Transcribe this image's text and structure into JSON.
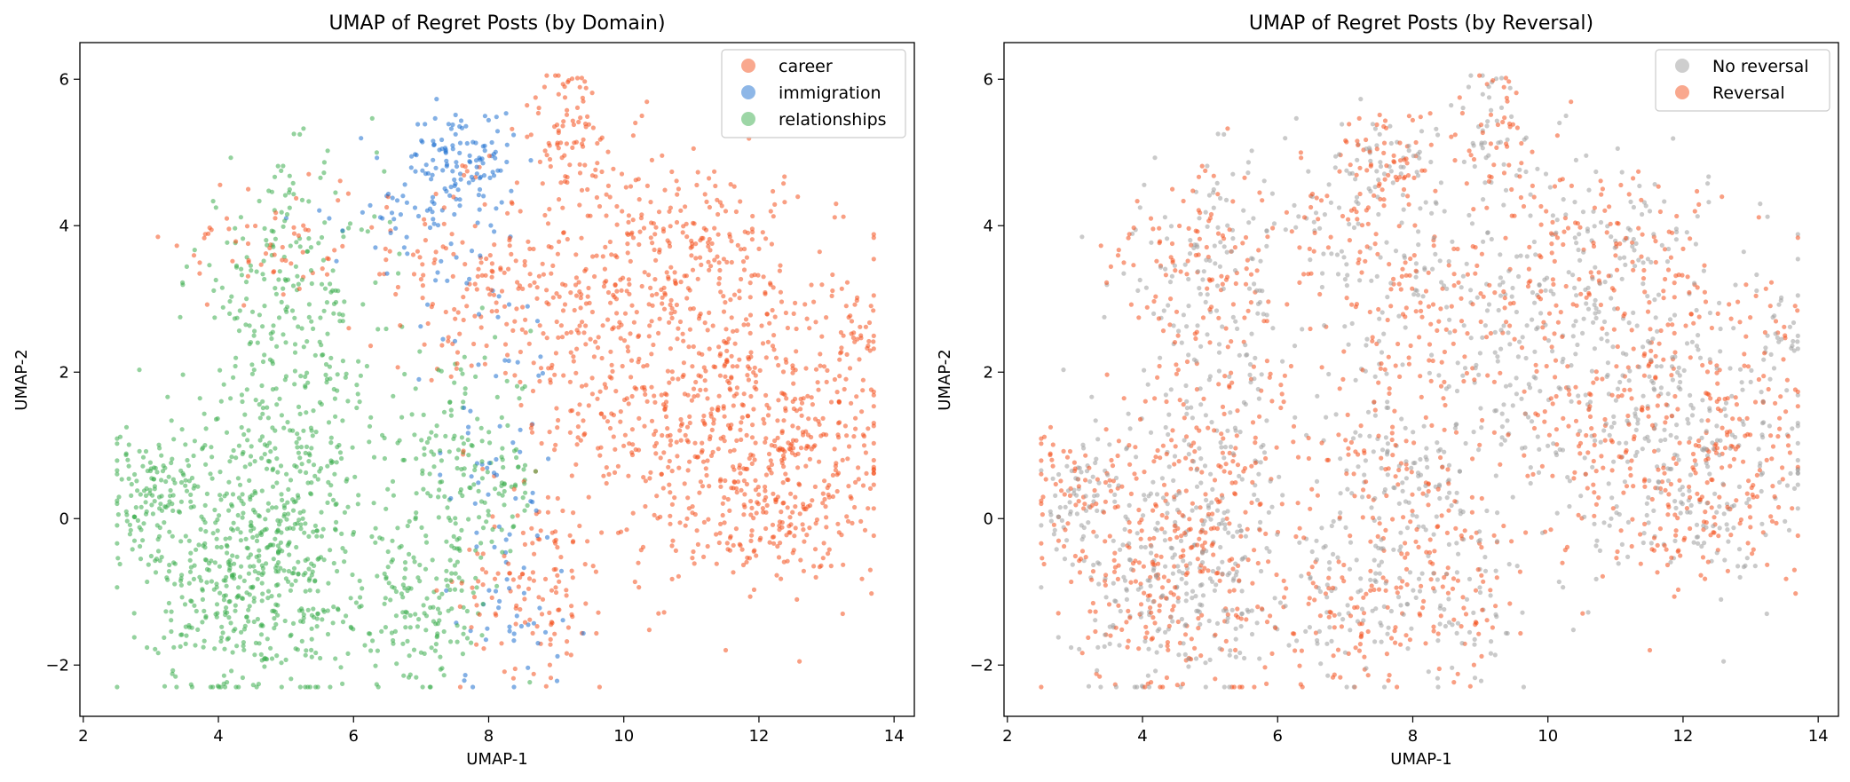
{
  "chart_data": [
    {
      "type": "scatter",
      "title": "UMAP of Regret Posts (by Domain)",
      "xlabel": "UMAP-1",
      "ylabel": "UMAP-2",
      "xlim": [
        1.95,
        14.3
      ],
      "ylim": [
        -2.7,
        6.5
      ],
      "xticks": [
        2,
        4,
        6,
        8,
        10,
        12,
        14
      ],
      "yticks": [
        -2,
        0,
        2,
        4,
        6
      ],
      "xtick_labels": [
        "2",
        "4",
        "6",
        "8",
        "10",
        "12",
        "14"
      ],
      "ytick_labels": [
        "−2",
        "0",
        "2",
        "4",
        "6"
      ],
      "grid": false,
      "legend_position": "top-right",
      "series": [
        {
          "name": "career",
          "color": "#f4511e",
          "clusters": [
            {
              "cx": 11.5,
              "cy": 1.5,
              "sx": 1.2,
              "sy": 1.2,
              "n": 520
            },
            {
              "cx": 9.5,
              "cy": 3.0,
              "sx": 0.9,
              "sy": 1.1,
              "n": 300
            },
            {
              "cx": 12.5,
              "cy": 0.8,
              "sx": 0.8,
              "sy": 0.8,
              "n": 200
            },
            {
              "cx": 9.2,
              "cy": 5.4,
              "sx": 0.35,
              "sy": 0.45,
              "n": 70
            },
            {
              "cx": 8.7,
              "cy": -0.9,
              "sx": 0.55,
              "sy": 0.6,
              "n": 120
            },
            {
              "cx": 11.2,
              "cy": 3.9,
              "sx": 0.6,
              "sy": 0.5,
              "n": 110
            },
            {
              "cx": 7.5,
              "cy": 3.3,
              "sx": 0.8,
              "sy": 0.6,
              "n": 100
            },
            {
              "cx": 4.8,
              "cy": 3.8,
              "sx": 0.7,
              "sy": 0.5,
              "n": 60
            },
            {
              "cx": 12.0,
              "cy": -0.2,
              "sx": 0.6,
              "sy": 0.4,
              "n": 70
            },
            {
              "cx": 13.5,
              "cy": 2.3,
              "sx": 0.2,
              "sy": 0.3,
              "n": 25
            }
          ]
        },
        {
          "name": "immigration",
          "color": "#1e6fd0",
          "clusters": [
            {
              "cx": 7.6,
              "cy": 4.9,
              "sx": 0.4,
              "sy": 0.35,
              "n": 110
            },
            {
              "cx": 6.8,
              "cy": 4.2,
              "sx": 0.6,
              "sy": 0.4,
              "n": 50
            },
            {
              "cx": 8.0,
              "cy": 1.5,
              "sx": 0.5,
              "sy": 1.2,
              "n": 60
            },
            {
              "cx": 8.3,
              "cy": -1.2,
              "sx": 0.5,
              "sy": 0.6,
              "n": 40
            }
          ]
        },
        {
          "name": "relationships",
          "color": "#3cad4e",
          "clusters": [
            {
              "cx": 4.5,
              "cy": -1.0,
              "sx": 0.75,
              "sy": 0.75,
              "n": 380
            },
            {
              "cx": 5.0,
              "cy": 0.6,
              "sx": 1.0,
              "sy": 0.9,
              "n": 340
            },
            {
              "cx": 3.0,
              "cy": 0.3,
              "sx": 0.45,
              "sy": 0.45,
              "n": 120
            },
            {
              "cx": 5.0,
              "cy": 3.2,
              "sx": 0.7,
              "sy": 0.8,
              "n": 200
            },
            {
              "cx": 7.7,
              "cy": 0.5,
              "sx": 0.55,
              "sy": 0.8,
              "n": 170
            },
            {
              "cx": 6.9,
              "cy": -1.3,
              "sx": 0.6,
              "sy": 0.5,
              "n": 140
            }
          ]
        }
      ]
    },
    {
      "type": "scatter",
      "title": "UMAP of Regret Posts (by Reversal)",
      "xlabel": "UMAP-1",
      "ylabel": "UMAP-2",
      "xlim": [
        1.95,
        14.3
      ],
      "ylim": [
        -2.7,
        6.5
      ],
      "xticks": [
        2,
        4,
        6,
        8,
        10,
        12,
        14
      ],
      "yticks": [
        -2,
        0,
        2,
        4,
        6
      ],
      "xtick_labels": [
        "2",
        "4",
        "6",
        "8",
        "10",
        "12",
        "14"
      ],
      "ytick_labels": [
        "−2",
        "0",
        "2",
        "4",
        "6"
      ],
      "grid": false,
      "legend_position": "top-right",
      "series": [
        {
          "name": "No reversal",
          "color": "#9e9e9e",
          "share": 0.5
        },
        {
          "name": "Reversal",
          "color": "#f4511e",
          "share": 0.5
        }
      ]
    }
  ]
}
